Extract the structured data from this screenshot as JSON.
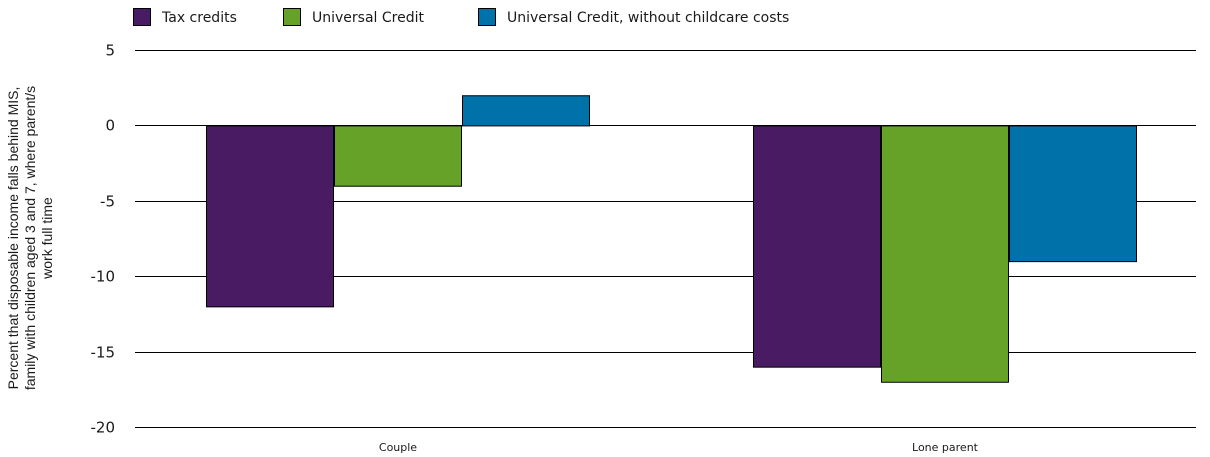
{
  "chart_data": {
    "type": "bar",
    "categories": [
      "Couple",
      "Lone parent"
    ],
    "series": [
      {
        "name": "Tax credits",
        "color": "#491b63",
        "values": [
          -12,
          -16
        ]
      },
      {
        "name": "Universal Credit",
        "color": "#67a228",
        "values": [
          -4,
          -17
        ]
      },
      {
        "name": "Universal Credit, without childcare costs",
        "color": "#0072aa",
        "values": [
          2,
          -9
        ]
      }
    ],
    "ylabel": "Percent that disposable income falls behind MIS, family with children aged 3 and 7, where parent/s work full time",
    "ylabel_lines": [
      "Percent that disposable income falls behind MIS,",
      "family with children aged 3 and 7, where parent/s",
      "work full time"
    ],
    "ylim": [
      -20,
      5
    ],
    "yticks": [
      5,
      0,
      -5,
      -10,
      -15,
      -20
    ],
    "grid": true,
    "legend_position": "top-left"
  }
}
